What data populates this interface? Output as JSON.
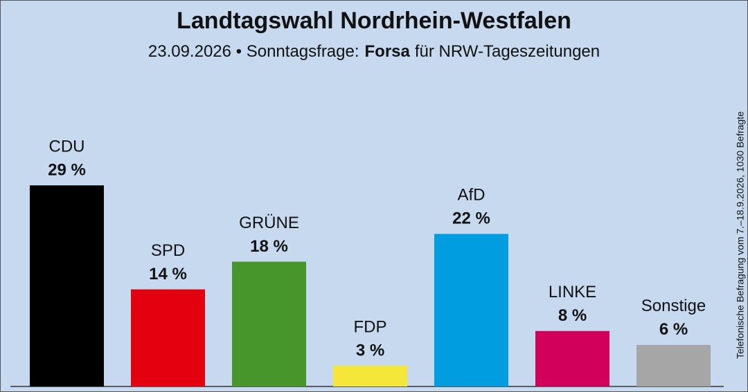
{
  "chart_data": {
    "type": "bar",
    "title": "Landtagswahl Nordrhein-Westfalen",
    "subtitle": {
      "date_and_kind": "23.09.2026 • Sonntagsfrage:",
      "institute": "Forsa",
      "client": "für NRW-Tageszeitungen"
    },
    "note": "Telefonische Befragung vom 7.–18.9.2026, 1030 Befragte",
    "categories": [
      "CDU",
      "SPD",
      "GRÜNE",
      "FDP",
      "AfD",
      "LINKE",
      "Sonstige"
    ],
    "values": [
      29,
      14,
      18,
      3,
      22,
      8,
      6
    ],
    "value_labels": [
      "29 %",
      "14 %",
      "18 %",
      "3 %",
      "22 %",
      "8 %",
      "6 %"
    ],
    "colors": [
      "#000000",
      "#e3000f",
      "#46962b",
      "#f5e63a",
      "#009ee0",
      "#d1005a",
      "#a6a6a6"
    ]
  }
}
